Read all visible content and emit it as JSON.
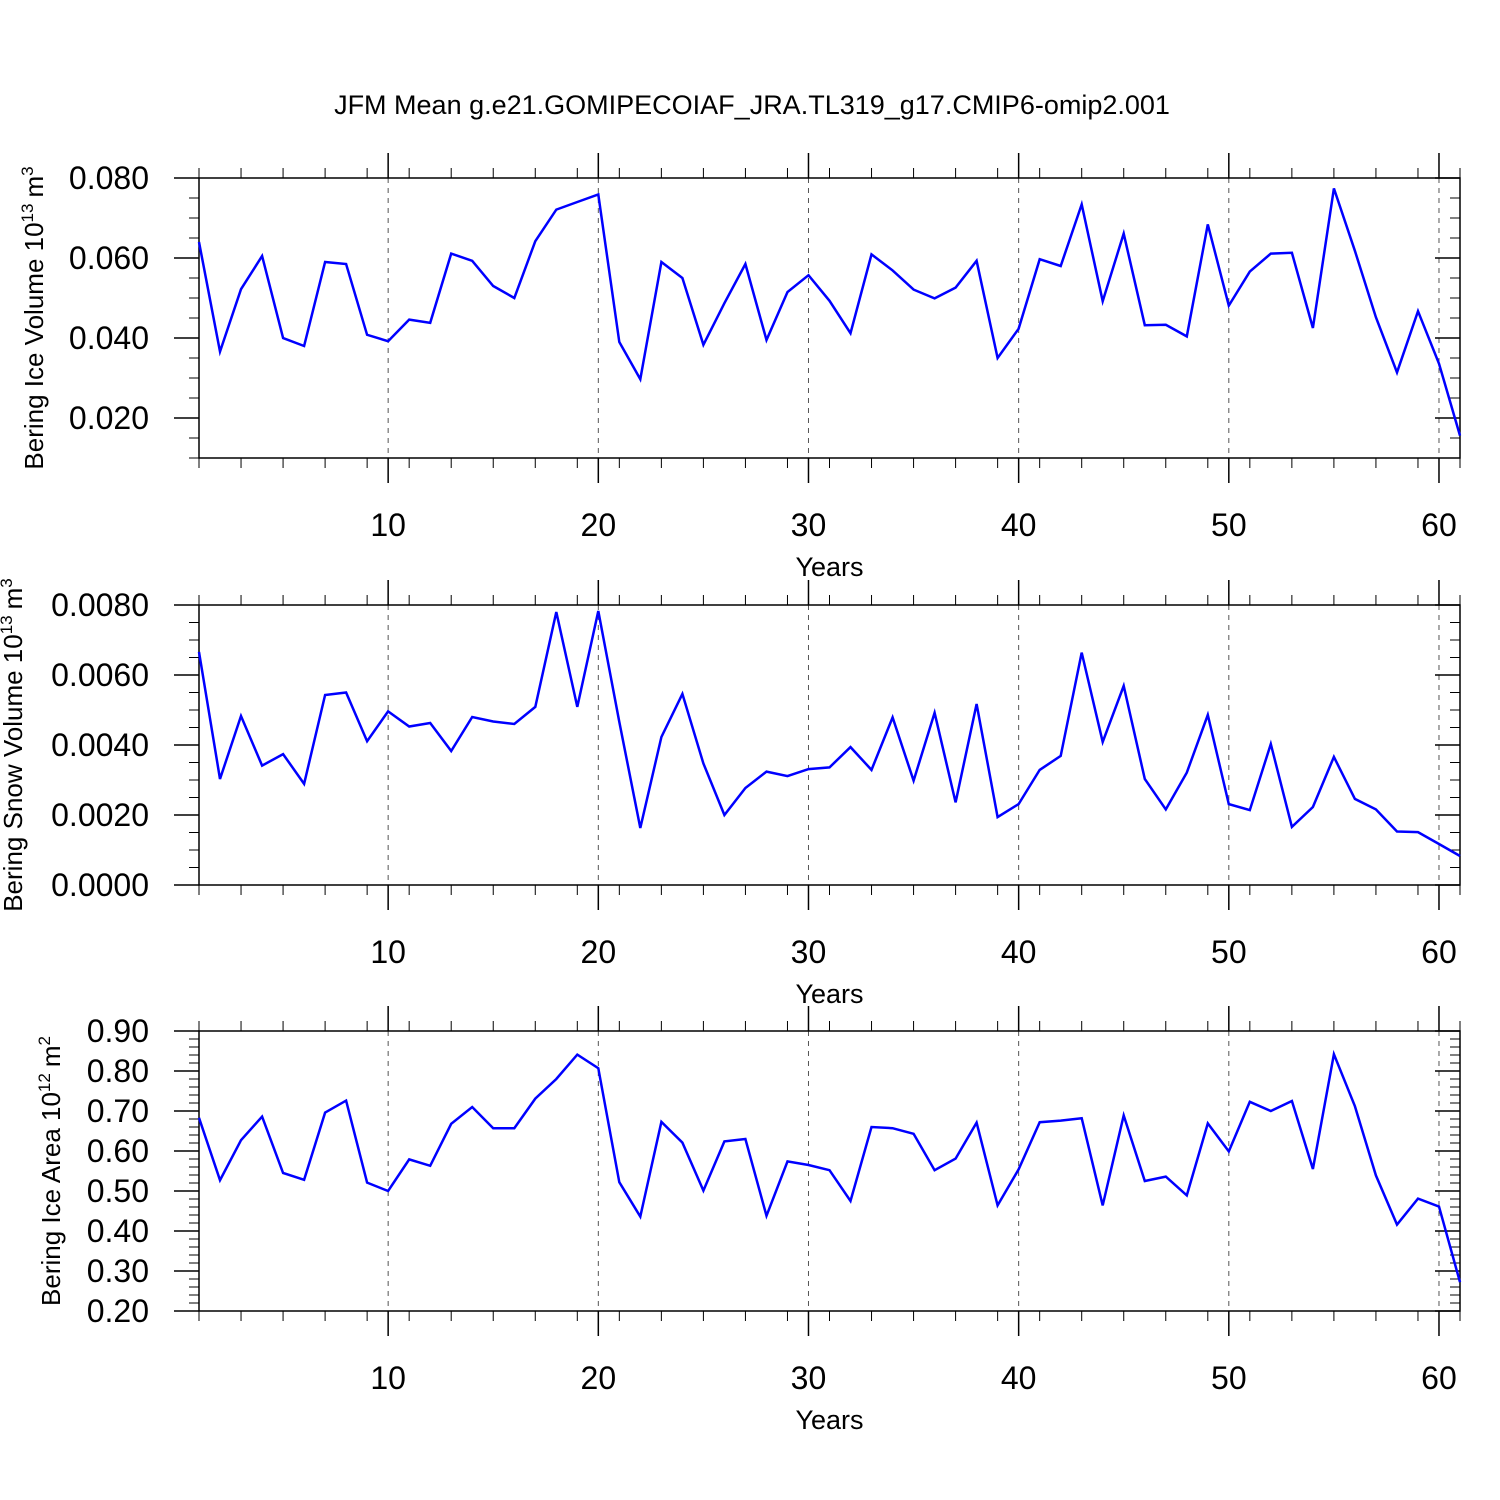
{
  "title": "JFM Mean g.e21.GOMIPECOIAF_JRA.TL319_g17.CMIP6-omip2.001",
  "chart_data": [
    {
      "type": "line",
      "ylabel": "Bering Ice Volume 10",
      "ylabel_exp": "13",
      "ylabel_unit": "m",
      "ylabel_unit_exp": "3",
      "xlabel": "Years",
      "xlim": [
        1,
        61
      ],
      "ylim": [
        0.01,
        0.08
      ],
      "yticks": [
        "0.020",
        "0.040",
        "0.060",
        "0.080"
      ],
      "ytick_values": [
        0.02,
        0.04,
        0.06,
        0.08
      ],
      "ytick_minor_step": 0.005,
      "xticks": [
        "10",
        "20",
        "30",
        "40",
        "50",
        "60"
      ],
      "xtick_values": [
        10,
        20,
        30,
        40,
        50,
        60
      ],
      "grid_x": true,
      "line_color": "#0000ff",
      "x": [
        1,
        2,
        3,
        4,
        5,
        6,
        7,
        8,
        9,
        10,
        11,
        12,
        13,
        14,
        15,
        16,
        17,
        18,
        19,
        20,
        21,
        22,
        23,
        24,
        25,
        26,
        27,
        28,
        29,
        30,
        31,
        32,
        33,
        34,
        35,
        36,
        37,
        38,
        39,
        40,
        41,
        42,
        43,
        44,
        45,
        46,
        47,
        48,
        49,
        50,
        51,
        52,
        53,
        54,
        55,
        56,
        57,
        58,
        59,
        60,
        61
      ],
      "y": [
        0.064,
        0.0366,
        0.0522,
        0.0605,
        0.04,
        0.038,
        0.059,
        0.0585,
        0.0408,
        0.0392,
        0.0446,
        0.0438,
        0.0611,
        0.0593,
        0.053,
        0.05,
        0.0642,
        0.0721,
        0.074,
        0.0759,
        0.039,
        0.0297,
        0.059,
        0.055,
        0.0383,
        0.0487,
        0.0585,
        0.0395,
        0.0515,
        0.0557,
        0.0493,
        0.0412,
        0.0609,
        0.0569,
        0.0521,
        0.0499,
        0.0526,
        0.0593,
        0.035,
        0.0423,
        0.0597,
        0.058,
        0.0734,
        0.0492,
        0.0661,
        0.0432,
        0.0433,
        0.0404,
        0.0684,
        0.0481,
        0.0566,
        0.0611,
        0.0613,
        0.0425,
        0.0774,
        0.0618,
        0.0452,
        0.0314,
        0.0467,
        0.0336,
        0.0156
      ]
    },
    {
      "type": "line",
      "ylabel": "Bering Snow Volume 10",
      "ylabel_exp": "13",
      "ylabel_unit": "m",
      "ylabel_unit_exp": "3",
      "xlabel": "Years",
      "xlim": [
        1,
        61
      ],
      "ylim": [
        0.0,
        0.008
      ],
      "yticks": [
        "0.0000",
        "0.0020",
        "0.0040",
        "0.0060",
        "0.0080"
      ],
      "ytick_values": [
        0.0,
        0.002,
        0.004,
        0.006,
        0.008
      ],
      "ytick_minor_step": 0.0005,
      "xticks": [
        "10",
        "20",
        "30",
        "40",
        "50",
        "60"
      ],
      "xtick_values": [
        10,
        20,
        30,
        40,
        50,
        60
      ],
      "grid_x": true,
      "line_color": "#0000ff",
      "x": [
        1,
        2,
        3,
        4,
        5,
        6,
        7,
        8,
        9,
        10,
        11,
        12,
        13,
        14,
        15,
        16,
        17,
        18,
        19,
        20,
        21,
        22,
        23,
        24,
        25,
        26,
        27,
        28,
        29,
        30,
        31,
        32,
        33,
        34,
        35,
        36,
        37,
        38,
        39,
        40,
        41,
        42,
        43,
        44,
        45,
        46,
        47,
        48,
        49,
        50,
        51,
        52,
        53,
        54,
        55,
        56,
        57,
        58,
        59,
        60,
        61
      ],
      "y": [
        0.00666,
        0.00303,
        0.00483,
        0.00341,
        0.00374,
        0.00289,
        0.00543,
        0.0055,
        0.00411,
        0.00496,
        0.00453,
        0.00463,
        0.00383,
        0.0048,
        0.00467,
        0.0046,
        0.00509,
        0.0078,
        0.00509,
        0.00783,
        0.00466,
        0.00163,
        0.00423,
        0.00546,
        0.00347,
        0.002,
        0.00277,
        0.00324,
        0.00311,
        0.00331,
        0.00336,
        0.00394,
        0.00329,
        0.00479,
        0.00298,
        0.00492,
        0.00236,
        0.00517,
        0.00194,
        0.00231,
        0.00329,
        0.00369,
        0.00664,
        0.00409,
        0.00569,
        0.00303,
        0.00216,
        0.00321,
        0.00486,
        0.00231,
        0.00214,
        0.00403,
        0.00166,
        0.00223,
        0.00366,
        0.00246,
        0.00216,
        0.00153,
        0.00151,
        0.00117,
        0.00083
      ]
    },
    {
      "type": "line",
      "ylabel": "Bering Ice Area 10",
      "ylabel_exp": "12",
      "ylabel_unit": "m",
      "ylabel_unit_exp": "2",
      "xlabel": "Years",
      "xlim": [
        1,
        61
      ],
      "ylim": [
        0.2,
        0.9
      ],
      "yticks": [
        "0.20",
        "0.30",
        "0.40",
        "0.50",
        "0.60",
        "0.70",
        "0.80",
        "0.90"
      ],
      "ytick_values": [
        0.2,
        0.3,
        0.4,
        0.5,
        0.6,
        0.7,
        0.8,
        0.9
      ],
      "ytick_minor_step": 0.02,
      "xticks": [
        "10",
        "20",
        "30",
        "40",
        "50",
        "60"
      ],
      "xtick_values": [
        10,
        20,
        30,
        40,
        50,
        60
      ],
      "grid_x": true,
      "line_color": "#0000ff",
      "x": [
        1,
        2,
        3,
        4,
        5,
        6,
        7,
        8,
        9,
        10,
        11,
        12,
        13,
        14,
        15,
        16,
        17,
        18,
        19,
        20,
        21,
        22,
        23,
        24,
        25,
        26,
        27,
        28,
        29,
        30,
        31,
        32,
        33,
        34,
        35,
        36,
        37,
        38,
        39,
        40,
        41,
        42,
        43,
        44,
        45,
        46,
        47,
        48,
        49,
        50,
        51,
        52,
        53,
        54,
        55,
        56,
        57,
        58,
        59,
        60,
        61
      ],
      "y": [
        0.683,
        0.527,
        0.627,
        0.686,
        0.545,
        0.528,
        0.696,
        0.726,
        0.521,
        0.5,
        0.579,
        0.563,
        0.668,
        0.71,
        0.657,
        0.657,
        0.731,
        0.78,
        0.841,
        0.807,
        0.522,
        0.436,
        0.673,
        0.621,
        0.501,
        0.624,
        0.63,
        0.438,
        0.574,
        0.565,
        0.552,
        0.475,
        0.66,
        0.657,
        0.643,
        0.552,
        0.581,
        0.671,
        0.464,
        0.554,
        0.672,
        0.676,
        0.682,
        0.464,
        0.689,
        0.525,
        0.536,
        0.489,
        0.669,
        0.599,
        0.723,
        0.7,
        0.725,
        0.555,
        0.842,
        0.712,
        0.539,
        0.416,
        0.481,
        0.461,
        0.272
      ]
    }
  ]
}
